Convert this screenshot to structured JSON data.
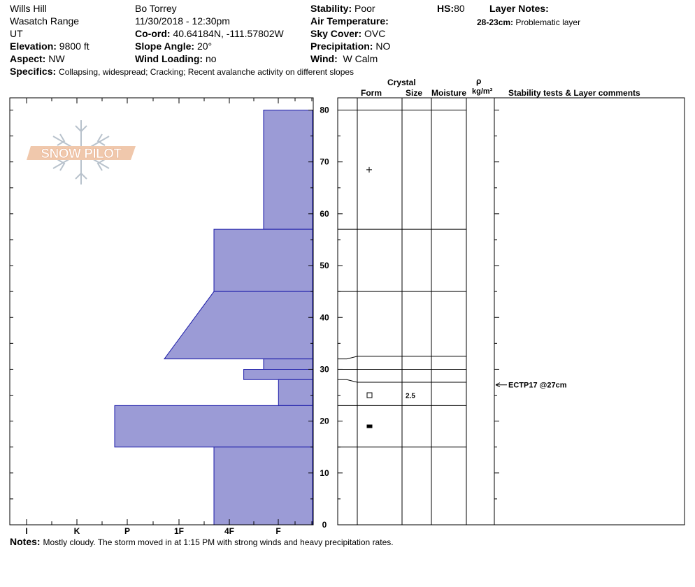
{
  "header": {
    "location": "Wills Hill",
    "range": "Wasatch Range",
    "state": "UT",
    "elevation_label": "Elevation:",
    "elevation_value": "9800 ft",
    "aspect_label": "Aspect:",
    "aspect_value": "NW",
    "observer": "Bo Torrey",
    "datetime": "11/30/2018 - 12:30pm",
    "coord_label": "Co-ord:",
    "coord_value": "40.64184N, -111.57802W",
    "slope_label": "Slope Angle:",
    "slope_value": "20°",
    "wind_loading_label": "Wind Loading:",
    "wind_loading_value": "no",
    "stability_label": "Stability:",
    "stability_value": "Poor",
    "air_temp_label": "Air Temperature:",
    "sky_label": "Sky Cover:",
    "sky_value": "OVC",
    "precip_label": "Precipitation:",
    "precip_value": "NO",
    "wind_label": "Wind:",
    "wind_value": "W Calm",
    "hs_label": "HS:",
    "hs_value": "80",
    "layer_notes_label": "Layer Notes:",
    "layer_note_depth": "28-23cm:",
    "layer_note_text": "Problematic layer",
    "specifics_label": "Specifics:",
    "specifics_value": "Collapsing, widespread;  Cracking;  Recent avalanche activity on different slopes"
  },
  "logo": {
    "text": "SNOW PILOT"
  },
  "columns": {
    "crystal": "Crystal",
    "form": "Form",
    "size": "Size",
    "moisture": "Moisture",
    "rho": "ρ",
    "density_unit": "kg/m³",
    "stability_tests": "Stability tests & Layer comments"
  },
  "footer": {
    "notes_label": "Notes:",
    "notes_value": "Mostly cloudy. The storm moved in at 1:15 PM with strong winds and heavy precipitation rates."
  },
  "colors": {
    "hardness_fill": "#9b9bd6",
    "hardness_stroke": "#1a1aa8"
  },
  "chart_data": {
    "type": "area",
    "title": "",
    "xlabel": "",
    "ylabel": "",
    "x_ticks": [
      "I",
      "K",
      "P",
      "1F",
      "4F",
      "F"
    ],
    "y_ticks": [
      0,
      10,
      20,
      30,
      40,
      50,
      60,
      70,
      80
    ],
    "ylim": [
      0,
      80
    ],
    "hardness_index": {
      "F": 1,
      "4F": 2,
      "1F": 3,
      "P": 4,
      "K": 5,
      "I": 6
    },
    "hardness_profile": [
      {
        "top": 80,
        "bottom": 57,
        "top_hardness": "F",
        "bottom_hardness": "F"
      },
      {
        "top": 57,
        "bottom": 45,
        "top_hardness": "4F",
        "bottom_hardness": "4F"
      },
      {
        "top": 45,
        "bottom": 32,
        "top_hardness": "4F",
        "bottom_hardness": "1F"
      },
      {
        "top": 32,
        "bottom": 30,
        "top_hardness": "F",
        "bottom_hardness": "F"
      },
      {
        "top": 30,
        "bottom": 28,
        "top_hardness": "F+",
        "bottom_hardness": "F+",
        "value": 1.4
      },
      {
        "top": 28,
        "bottom": 23,
        "top_hardness": "F-",
        "bottom_hardness": "F-",
        "value": 0.7
      },
      {
        "top": 23,
        "bottom": 15,
        "top_hardness": "P",
        "bottom_hardness": "P"
      },
      {
        "top": 15,
        "bottom": 0,
        "top_hardness": "4F",
        "bottom_hardness": "4F"
      }
    ],
    "layer_boundaries": [
      80,
      57,
      45,
      32.5,
      30,
      27.5,
      23,
      15
    ],
    "crystal_layers": [
      {
        "depth": 68.5,
        "form": "+",
        "size": ""
      },
      {
        "depth": 25,
        "form": "□",
        "size": "2.5"
      },
      {
        "depth": 19,
        "form": "■",
        "size": ""
      }
    ],
    "stability_tests": [
      {
        "depth": 27,
        "label": "ECTP17 @27cm"
      }
    ]
  }
}
